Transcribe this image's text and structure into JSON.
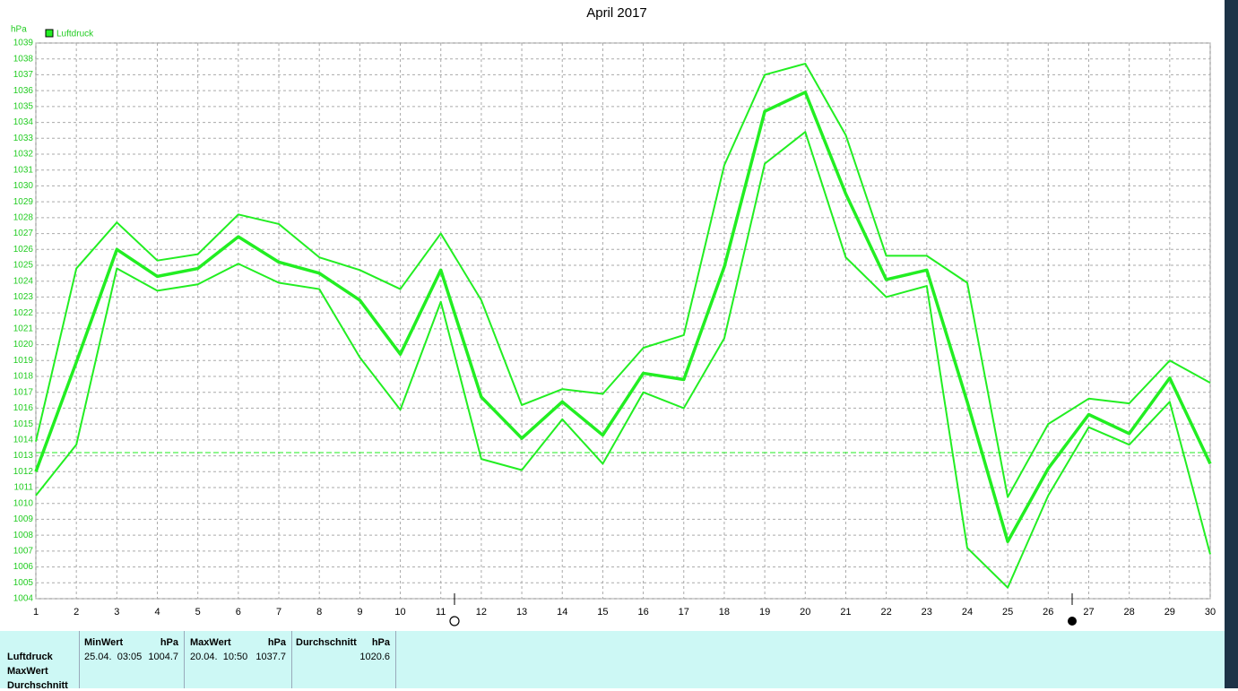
{
  "chart_data": {
    "type": "line",
    "title": "April 2017",
    "y_label": "hPa",
    "legend_label": "Luftdruck",
    "color": "#22ee22",
    "x": [
      1,
      2,
      3,
      4,
      5,
      6,
      7,
      8,
      9,
      10,
      11,
      12,
      13,
      14,
      15,
      16,
      17,
      18,
      19,
      20,
      21,
      22,
      23,
      24,
      25,
      26,
      27,
      28,
      29,
      30
    ],
    "xlim": [
      1,
      30
    ],
    "xticks": [
      1,
      2,
      3,
      4,
      5,
      6,
      7,
      8,
      9,
      10,
      11,
      12,
      13,
      14,
      15,
      16,
      17,
      18,
      19,
      20,
      21,
      22,
      23,
      24,
      25,
      26,
      27,
      28,
      29,
      30
    ],
    "ylim": [
      1004,
      1039
    ],
    "yticks": [
      1004,
      1005,
      1006,
      1007,
      1008,
      1009,
      1010,
      1011,
      1012,
      1013,
      1014,
      1015,
      1016,
      1017,
      1018,
      1019,
      1020,
      1021,
      1022,
      1023,
      1024,
      1025,
      1026,
      1027,
      1028,
      1029,
      1030,
      1031,
      1032,
      1033,
      1034,
      1035,
      1036,
      1037,
      1038,
      1039
    ],
    "grid": true,
    "reference_line": 1013.2,
    "series": [
      {
        "color": "#22ee22",
        "width": 2,
        "values": [
          1013.9,
          1024.8,
          1027.7,
          1025.3,
          1025.7,
          1028.2,
          1027.6,
          1025.5,
          1024.7,
          1023.5,
          1027.0,
          1022.8,
          1016.2,
          1017.2,
          1016.9,
          1019.8,
          1020.6,
          1031.3,
          1037.0,
          1037.7,
          1033.2,
          1025.6,
          1025.6,
          1023.9,
          1010.4,
          1015.0,
          1016.6,
          1016.3,
          1019.0,
          1017.6
        ]
      },
      {
        "name": "Luftdruck",
        "color": "#22ee22",
        "width": 3.5,
        "values": [
          1012.0,
          1018.9,
          1026.0,
          1024.3,
          1024.8,
          1026.8,
          1025.2,
          1024.5,
          1022.8,
          1019.4,
          1024.7,
          1016.7,
          1014.1,
          1016.4,
          1014.3,
          1018.2,
          1017.8,
          1024.9,
          1034.7,
          1035.9,
          1029.5,
          1024.1,
          1024.7,
          1016.4,
          1007.6,
          1012.2,
          1015.6,
          1014.4,
          1017.9,
          1012.5
        ]
      },
      {
        "color": "#22ee22",
        "width": 2,
        "values": [
          1010.5,
          1013.7,
          1024.8,
          1023.4,
          1023.8,
          1025.1,
          1023.9,
          1023.5,
          1019.2,
          1015.9,
          1022.7,
          1012.8,
          1012.1,
          1015.3,
          1012.5,
          1017.0,
          1016.0,
          1020.4,
          1031.4,
          1033.4,
          1025.5,
          1023.0,
          1023.7,
          1007.2,
          1004.7,
          1010.5,
          1014.8,
          1013.7,
          1016.4,
          1006.8
        ]
      }
    ]
  },
  "stats": {
    "rows": [
      "Luftdruck",
      "MaxWert",
      "Durchschnitt"
    ],
    "min": {
      "title": "MinWert",
      "unit": "hPa",
      "date": "25.04.  03:05",
      "value": "1004.7"
    },
    "max": {
      "title": "MaxWert",
      "unit": "hPa",
      "date": "20.04.  10:50",
      "value": "1037.7"
    },
    "avg": {
      "title": "Durchschnitt",
      "unit": "hPa",
      "value": "1020.6"
    }
  }
}
